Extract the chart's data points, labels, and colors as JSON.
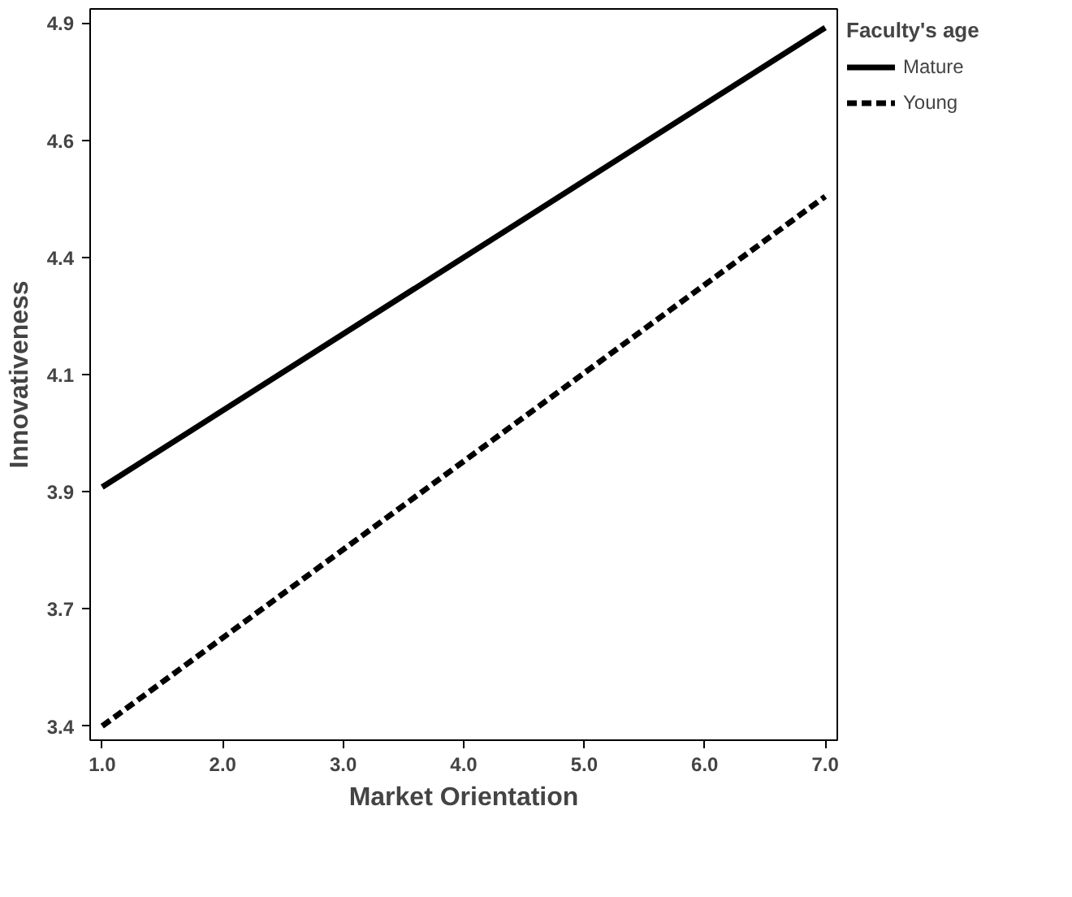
{
  "chart_data": {
    "type": "line",
    "xlabel": "Market Orientation",
    "ylabel": "Innovativeness",
    "legend_title": "Faculty's age",
    "legend": "top right",
    "x": [
      1.0,
      7.0
    ],
    "series": [
      {
        "name": "Mature",
        "color": "#000000",
        "values": [
          3.91,
          4.89
        ],
        "line_style": "solid"
      },
      {
        "name": "Young",
        "color": "#000000",
        "values": [
          3.4,
          4.53
        ],
        "line_style": "dashed"
      }
    ],
    "xlim": [
      0.9,
      7.1
    ],
    "ylim": [
      3.37,
      4.93
    ],
    "xticks": [
      {
        "value": 1,
        "label": "1.0"
      },
      {
        "value": 2,
        "label": "2.0"
      },
      {
        "value": 3,
        "label": "3.0"
      },
      {
        "value": 4,
        "label": "4.0"
      },
      {
        "value": 5,
        "label": "5.0"
      },
      {
        "value": 6,
        "label": "6.0"
      },
      {
        "value": 7,
        "label": "7.0"
      }
    ],
    "yticks": [
      {
        "value": 3.4,
        "label": "3.4"
      },
      {
        "value": 3.65,
        "label": "3.7"
      },
      {
        "value": 3.9,
        "label": "3.9"
      },
      {
        "value": 4.15,
        "label": "4.1"
      },
      {
        "value": 4.4,
        "label": "4.4"
      },
      {
        "value": 4.65,
        "label": "4.6"
      },
      {
        "value": 4.9,
        "label": "4.9"
      }
    ],
    "grid": false,
    "marker": "none"
  }
}
